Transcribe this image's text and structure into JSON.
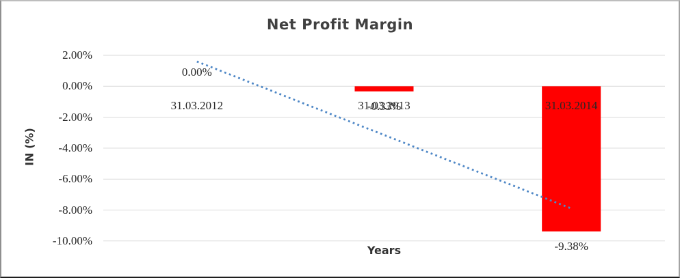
{
  "chart": {
    "title": "Net Profit Margin",
    "y_axis_title": "IN (%)",
    "x_axis_title": "Years"
  },
  "chart_data": {
    "type": "bar",
    "title": "Net Profit Margin",
    "xlabel": "Years",
    "ylabel": "IN (%)",
    "categories": [
      "31.03.2012",
      "31.03.2013",
      "31.03.2014"
    ],
    "values": [
      0.0,
      -0.33,
      -9.38
    ],
    "data_labels": [
      "0.00%",
      "-0.33%",
      "-9.38%"
    ],
    "ylim": [
      -10,
      2
    ],
    "yticks": [
      2,
      0,
      -2,
      -4,
      -6,
      -8,
      -10
    ],
    "ytick_labels": [
      "2.00%",
      "0.00%",
      "-2.00%",
      "-4.00%",
      "-6.00%",
      "-8.00%",
      "-10.00%"
    ],
    "grid": true,
    "legend": "none",
    "bar_color": "#FF0000",
    "gridline_color": "#D9D9D9",
    "trendline": {
      "type": "linear",
      "style": "dotted",
      "color": "#4E87C6",
      "start_value": 1.6,
      "end_value": -7.9
    }
  }
}
